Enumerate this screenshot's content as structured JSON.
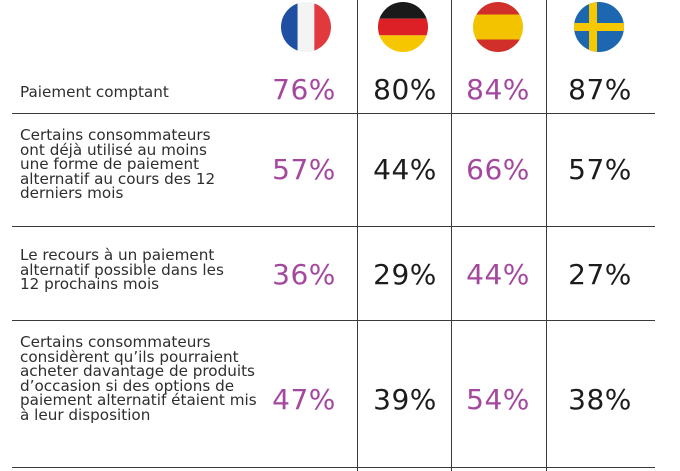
{
  "columns": [
    {
      "country_flag": "france-flag-icon",
      "accent": "#a4489f"
    },
    {
      "country_flag": "germany-flag-icon",
      "accent": "#1c1c1c"
    },
    {
      "country_flag": "spain-flag-icon",
      "accent": "#a4489f"
    },
    {
      "country_flag": "sweden-flag-icon",
      "accent": "#1c1c1c"
    }
  ],
  "rows": [
    {
      "label": "Paiement comptant",
      "values": [
        "76%",
        "80%",
        "84%",
        "87%"
      ]
    },
    {
      "label": "Certains consommateurs ont déjà utilisé au moins une forme de paiement alternatif au cours des 12 derniers mois",
      "values": [
        "57%",
        "44%",
        "66%",
        "57%"
      ]
    },
    {
      "label": "Le recours à un paiement alternatif possible dans les 12 prochains mois",
      "values": [
        "36%",
        "29%",
        "44%",
        "27%"
      ]
    },
    {
      "label": "Certains consommateurs considèrent qu’ils pourraient acheter davantage de produits d’occasion si des options de paiement alternatif étaient mis à leur disposition",
      "values": [
        "47%",
        "39%",
        "54%",
        "38%"
      ]
    }
  ],
  "colors": {
    "pink": "#a4489f",
    "dark": "#1c1c1c",
    "rule": "#3a3a3a"
  }
}
